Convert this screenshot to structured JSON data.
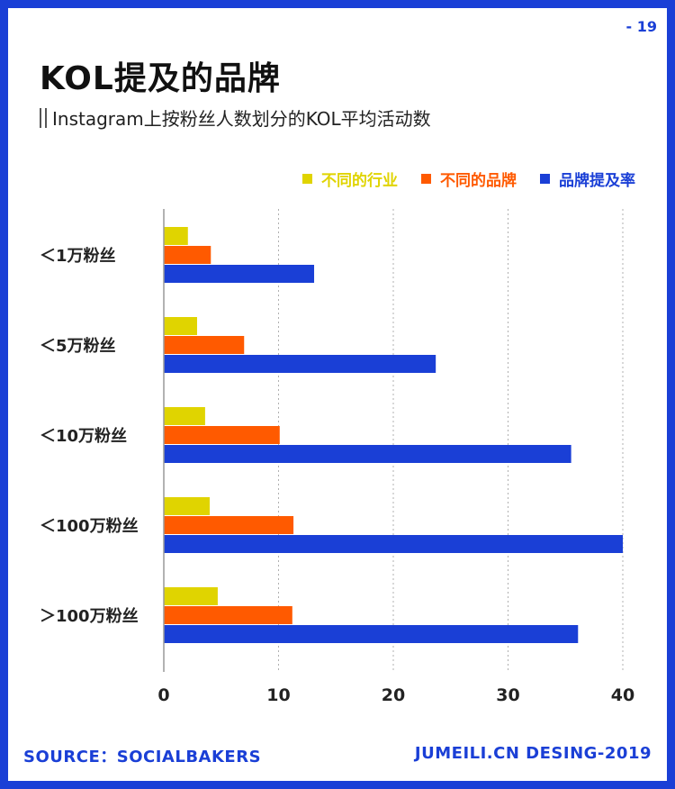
{
  "page_number": "- 19",
  "title": "KOL提及的品牌",
  "subtitle": "Instagram上按粉丝人数划分的KOL平均活动数",
  "footer": {
    "source": "SOURCE：SOCIALBAKERS",
    "credit": "JUMEILI.CN DESING-2019"
  },
  "colors": {
    "accent": "#1a3fd6",
    "industry": "#e0d400",
    "brand": "#ff5a00",
    "mention_rate": "#1a3fd6"
  },
  "chart_data": {
    "type": "bar",
    "orientation": "horizontal",
    "categories": [
      "<1万粉丝",
      "<5万粉丝",
      "<10万粉丝",
      "<100万粉丝",
      ">100万粉丝"
    ],
    "category_labels": [
      "＜1万粉丝",
      "＜5万粉丝",
      "＜10万粉丝",
      "＜100万粉丝",
      "＞100万粉丝"
    ],
    "series": [
      {
        "name": "不同的行业",
        "color": "#e0d400",
        "values": [
          2.1,
          2.9,
          3.6,
          4.0,
          4.7
        ]
      },
      {
        "name": "不同的品牌",
        "color": "#ff5a00",
        "values": [
          4.1,
          7.0,
          10.1,
          11.3,
          11.2
        ]
      },
      {
        "name": "品牌提及率",
        "color": "#1a3fd6",
        "values": [
          13.1,
          23.7,
          35.5,
          40.0,
          36.1
        ]
      }
    ],
    "xlim": [
      0,
      40
    ],
    "xticks": [
      0,
      10,
      20,
      30,
      40
    ],
    "grid": "vertical-dashed",
    "legend_position": "top-right"
  }
}
